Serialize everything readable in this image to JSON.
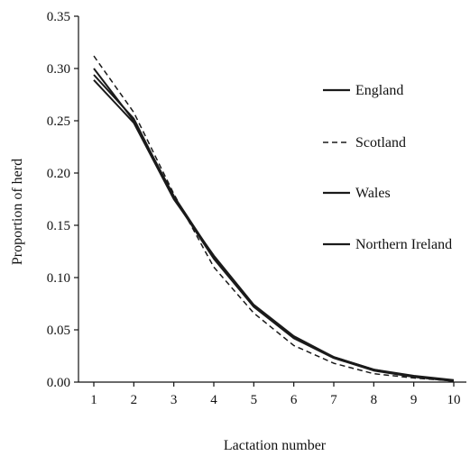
{
  "chart_data": {
    "type": "line",
    "title": "",
    "xlabel": "Lactation number",
    "ylabel": "Proportion of herd",
    "x": [
      1,
      2,
      3,
      4,
      5,
      6,
      7,
      8,
      9,
      10
    ],
    "x_ticks": [
      "1",
      "2",
      "3",
      "4",
      "5",
      "6",
      "7",
      "8",
      "9",
      "10"
    ],
    "xlim": [
      1,
      10
    ],
    "ylim": [
      0,
      0.35
    ],
    "y_ticks": [
      "0.00",
      "0.05",
      "0.10",
      "0.15",
      "0.20",
      "0.25",
      "0.30",
      "0.35"
    ],
    "grid": false,
    "legend_position": "right",
    "series": [
      {
        "name": "England",
        "line_style": "solid",
        "color": "#1a1a1a",
        "values": [
          0.3,
          0.25,
          0.178,
          0.12,
          0.073,
          0.043,
          0.024,
          0.012,
          0.005,
          0.001
        ]
      },
      {
        "name": "Scotland",
        "line_style": "dashed",
        "color": "#1a1a1a",
        "values": [
          0.312,
          0.258,
          0.18,
          0.11,
          0.066,
          0.035,
          0.018,
          0.008,
          0.004,
          0.001
        ]
      },
      {
        "name": "Wales",
        "line_style": "solid",
        "color": "#1a1a1a",
        "values": [
          0.294,
          0.252,
          0.176,
          0.118,
          0.072,
          0.042,
          0.023,
          0.011,
          0.005,
          0.001
        ]
      },
      {
        "name": "Northern Ireland",
        "line_style": "solid",
        "color": "#1a1a1a",
        "values": [
          0.289,
          0.248,
          0.175,
          0.121,
          0.074,
          0.044,
          0.024,
          0.012,
          0.006,
          0.002
        ]
      }
    ]
  }
}
